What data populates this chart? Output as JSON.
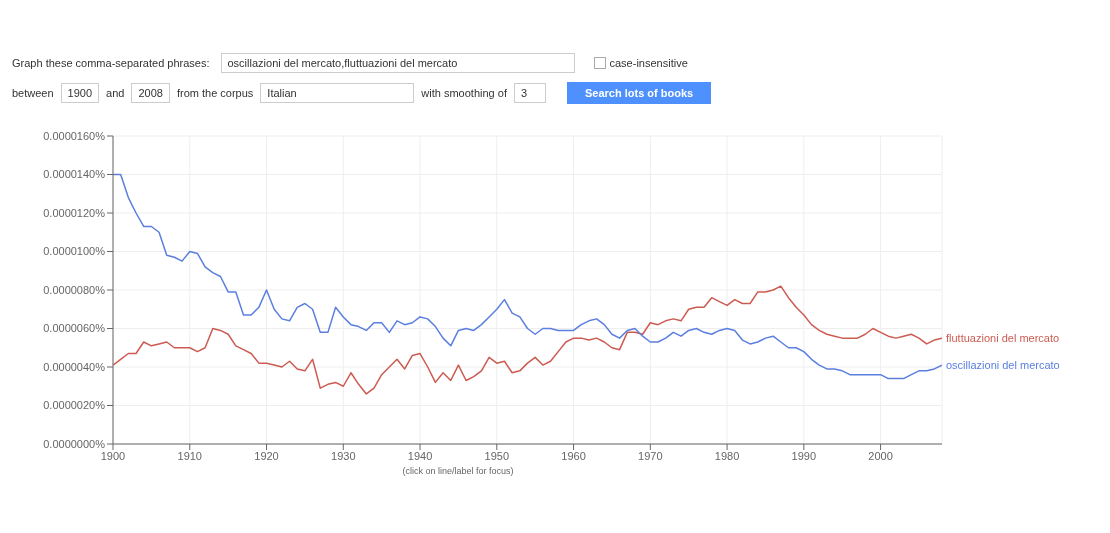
{
  "chart_data": {
    "type": "line",
    "annotations": [
      "Graph these comma-separated phrases:",
      "oscillazioni del mercato,fluttuazioni del mercato",
      "case-insensitive",
      "between",
      "1900",
      "and",
      "2008",
      "from the corpus",
      "Italian",
      "with smoothing of",
      "3",
      "Search lots of books",
      "(click on line/label for focus)"
    ],
    "x": [
      1900,
      1901,
      1902,
      1903,
      1904,
      1905,
      1906,
      1907,
      1908,
      1909,
      1910,
      1911,
      1912,
      1913,
      1914,
      1915,
      1916,
      1917,
      1918,
      1919,
      1920,
      1921,
      1922,
      1923,
      1924,
      1925,
      1926,
      1927,
      1928,
      1929,
      1930,
      1931,
      1932,
      1933,
      1934,
      1935,
      1936,
      1937,
      1938,
      1939,
      1940,
      1941,
      1942,
      1943,
      1944,
      1945,
      1946,
      1947,
      1948,
      1949,
      1950,
      1951,
      1952,
      1953,
      1954,
      1955,
      1956,
      1957,
      1958,
      1959,
      1960,
      1961,
      1962,
      1963,
      1964,
      1965,
      1966,
      1967,
      1968,
      1969,
      1970,
      1971,
      1972,
      1973,
      1974,
      1975,
      1976,
      1977,
      1978,
      1979,
      1980,
      1981,
      1982,
      1983,
      1984,
      1985,
      1986,
      1987,
      1988,
      1989,
      1990,
      1991,
      1992,
      1993,
      1994,
      1995,
      1996,
      1997,
      1998,
      1999,
      2000,
      2001,
      2002,
      2003,
      2004,
      2005,
      2006,
      2007,
      2008
    ],
    "series": [
      {
        "name": "fluttuazioni del mercato",
        "color": "#cc5b52",
        "values": [
          4.1e-06,
          4.4e-06,
          4.7e-06,
          4.7e-06,
          5.3e-06,
          5.1e-06,
          5.2e-06,
          5.3e-06,
          5e-06,
          5e-06,
          5e-06,
          4.8e-06,
          5e-06,
          6e-06,
          5.9e-06,
          5.7e-06,
          5.1e-06,
          4.9e-06,
          4.7e-06,
          4.2e-06,
          4.2e-06,
          4.1e-06,
          4e-06,
          4.3e-06,
          3.9e-06,
          3.8e-06,
          4.4e-06,
          2.9e-06,
          3.1e-06,
          3.2e-06,
          3e-06,
          3.7e-06,
          3.1e-06,
          2.6e-06,
          2.9e-06,
          3.6e-06,
          4e-06,
          4.4e-06,
          3.9e-06,
          4.6e-06,
          4.7e-06,
          4e-06,
          3.2e-06,
          3.7e-06,
          3.3e-06,
          4.1e-06,
          3.3e-06,
          3.5e-06,
          3.8e-06,
          4.5e-06,
          4.2e-06,
          4.3e-06,
          3.7e-06,
          3.8e-06,
          4.2e-06,
          4.5e-06,
          4.1e-06,
          4.3e-06,
          4.8e-06,
          5.3e-06,
          5.5e-06,
          5.5e-06,
          5.4e-06,
          5.5e-06,
          5.3e-06,
          5e-06,
          4.9e-06,
          5.8e-06,
          5.8e-06,
          5.7e-06,
          6.3e-06,
          6.2e-06,
          6.4e-06,
          6.5e-06,
          6.4e-06,
          7e-06,
          7.1e-06,
          7.1e-06,
          7.6e-06,
          7.4e-06,
          7.2e-06,
          7.5e-06,
          7.3e-06,
          7.3e-06,
          7.9e-06,
          7.9e-06,
          8e-06,
          8.2e-06,
          7.6e-06,
          7.1e-06,
          6.7e-06,
          6.2e-06,
          5.9e-06,
          5.7e-06,
          5.6e-06,
          5.5e-06,
          5.5e-06,
          5.5e-06,
          5.7e-06,
          6e-06,
          5.8e-06,
          5.6e-06,
          5.5e-06,
          5.6e-06,
          5.7e-06,
          5.5e-06,
          5.2e-06,
          5.4e-06,
          5.5e-06
        ]
      },
      {
        "name": "oscillazioni del mercato",
        "color": "#5b7fe0",
        "values": [
          1.4e-05,
          1.4e-05,
          1.28e-05,
          1.2e-05,
          1.13e-05,
          1.13e-05,
          1.1e-05,
          9.8e-06,
          9.7e-06,
          9.5e-06,
          1e-05,
          9.9e-06,
          9.2e-06,
          8.9e-06,
          8.7e-06,
          7.9e-06,
          7.9e-06,
          6.7e-06,
          6.7e-06,
          7.1e-06,
          8e-06,
          7e-06,
          6.5e-06,
          6.4e-06,
          7.1e-06,
          7.3e-06,
          7e-06,
          5.8e-06,
          5.8e-06,
          7.1e-06,
          6.6e-06,
          6.2e-06,
          6.1e-06,
          5.9e-06,
          6.3e-06,
          6.3e-06,
          5.8e-06,
          6.4e-06,
          6.2e-06,
          6.3e-06,
          6.6e-06,
          6.5e-06,
          6.1e-06,
          5.5e-06,
          5.1e-06,
          5.9e-06,
          6e-06,
          5.9e-06,
          6.2e-06,
          6.6e-06,
          7e-06,
          7.5e-06,
          6.8e-06,
          6.6e-06,
          6e-06,
          5.7e-06,
          6e-06,
          6e-06,
          5.9e-06,
          5.9e-06,
          5.9e-06,
          6.2e-06,
          6.4e-06,
          6.5e-06,
          6.2e-06,
          5.7e-06,
          5.5e-06,
          5.9e-06,
          6e-06,
          5.6e-06,
          5.3e-06,
          5.3e-06,
          5.5e-06,
          5.8e-06,
          5.6e-06,
          5.9e-06,
          6e-06,
          5.8e-06,
          5.7e-06,
          5.9e-06,
          6e-06,
          5.9e-06,
          5.4e-06,
          5.2e-06,
          5.3e-06,
          5.5e-06,
          5.6e-06,
          5.3e-06,
          5e-06,
          5e-06,
          4.8e-06,
          4.4e-06,
          4.1e-06,
          3.9e-06,
          3.9e-06,
          3.8e-06,
          3.6e-06,
          3.6e-06,
          3.6e-06,
          3.6e-06,
          3.6e-06,
          3.4e-06,
          3.4e-06,
          3.4e-06,
          3.6e-06,
          3.8e-06,
          3.8e-06,
          3.9e-06,
          4.1e-06
        ]
      }
    ],
    "xlim": [
      1900,
      2008
    ],
    "xticks": [
      1900,
      1910,
      1920,
      1930,
      1940,
      1950,
      1960,
      1970,
      1980,
      1990,
      2000
    ],
    "ylim": [
      0,
      1.6e-05
    ],
    "yticks": [
      {
        "value": 0,
        "label": "0.0000000%"
      },
      {
        "value": 2e-06,
        "label": "0.0000020%"
      },
      {
        "value": 4e-06,
        "label": "0.0000040%"
      },
      {
        "value": 6e-06,
        "label": "0.0000060%"
      },
      {
        "value": 8e-06,
        "label": "0.0000080%"
      },
      {
        "value": 1e-05,
        "label": "0.0000100%"
      },
      {
        "value": 1.2e-05,
        "label": "0.0000120%"
      },
      {
        "value": 1.4e-05,
        "label": "0.0000140%"
      },
      {
        "value": 1.6e-05,
        "label": "0.0000160%"
      }
    ],
    "grid": true,
    "legend": false,
    "marker": "none",
    "line_style": "solid"
  }
}
